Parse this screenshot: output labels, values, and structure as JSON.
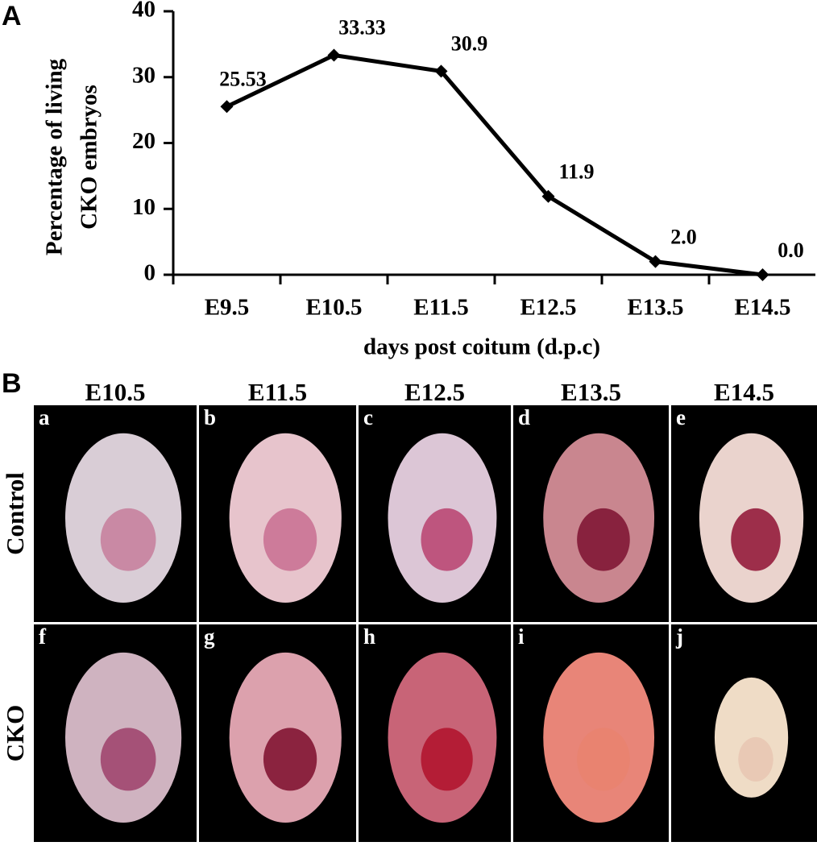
{
  "panel_labels": [
    "A",
    "B"
  ],
  "chart_data": {
    "type": "line",
    "xlabel": "days post coitum (d.p.c)",
    "ylabel": [
      "Percentage of living",
      "CKO embryos"
    ],
    "categories": [
      "E9.5",
      "E10.5",
      "E11.5",
      "E12.5",
      "E13.5",
      "E14.5"
    ],
    "values": [
      25.53,
      33.33,
      30.9,
      11.9,
      2,
      0
    ],
    "value_labels": [
      "25.53",
      "33.33",
      "30.9",
      "11.9",
      "2.0",
      "0.0"
    ],
    "color": "#000000",
    "ylim": [
      0,
      40
    ],
    "yticks": [
      0,
      10,
      20,
      30,
      40
    ]
  },
  "panel_b": {
    "columns": [
      "E10.5",
      "E11.5",
      "E12.5",
      "E13.5",
      "E14.5"
    ],
    "rows": [
      "Control",
      "CKO"
    ],
    "images": [
      "a",
      "b",
      "c",
      "d",
      "e",
      "f",
      "g",
      "h",
      "i",
      "j"
    ]
  }
}
